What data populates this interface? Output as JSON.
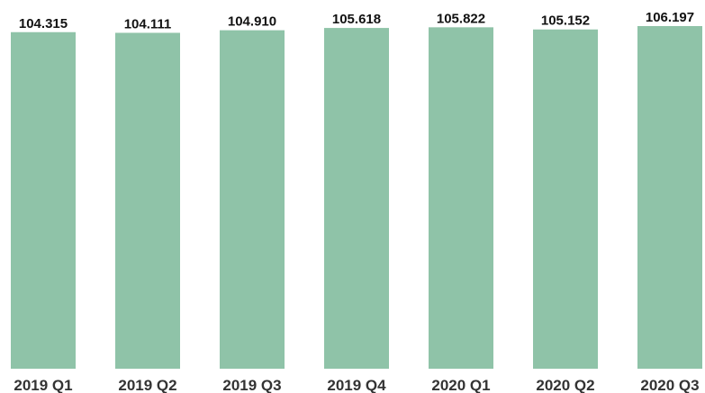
{
  "chart_data": {
    "type": "bar",
    "categories": [
      "2019 Q1",
      "2019 Q2",
      "2019 Q3",
      "2019 Q4",
      "2020 Q1",
      "2020 Q2",
      "2020 Q3"
    ],
    "values": [
      104.315,
      104.111,
      104.91,
      105.618,
      105.822,
      105.152,
      106.197
    ],
    "value_labels": [
      "104.315",
      "104.111",
      "104.910",
      "105.618",
      "105.822",
      "105.152",
      "106.197"
    ],
    "color": "#8fc3a8"
  }
}
